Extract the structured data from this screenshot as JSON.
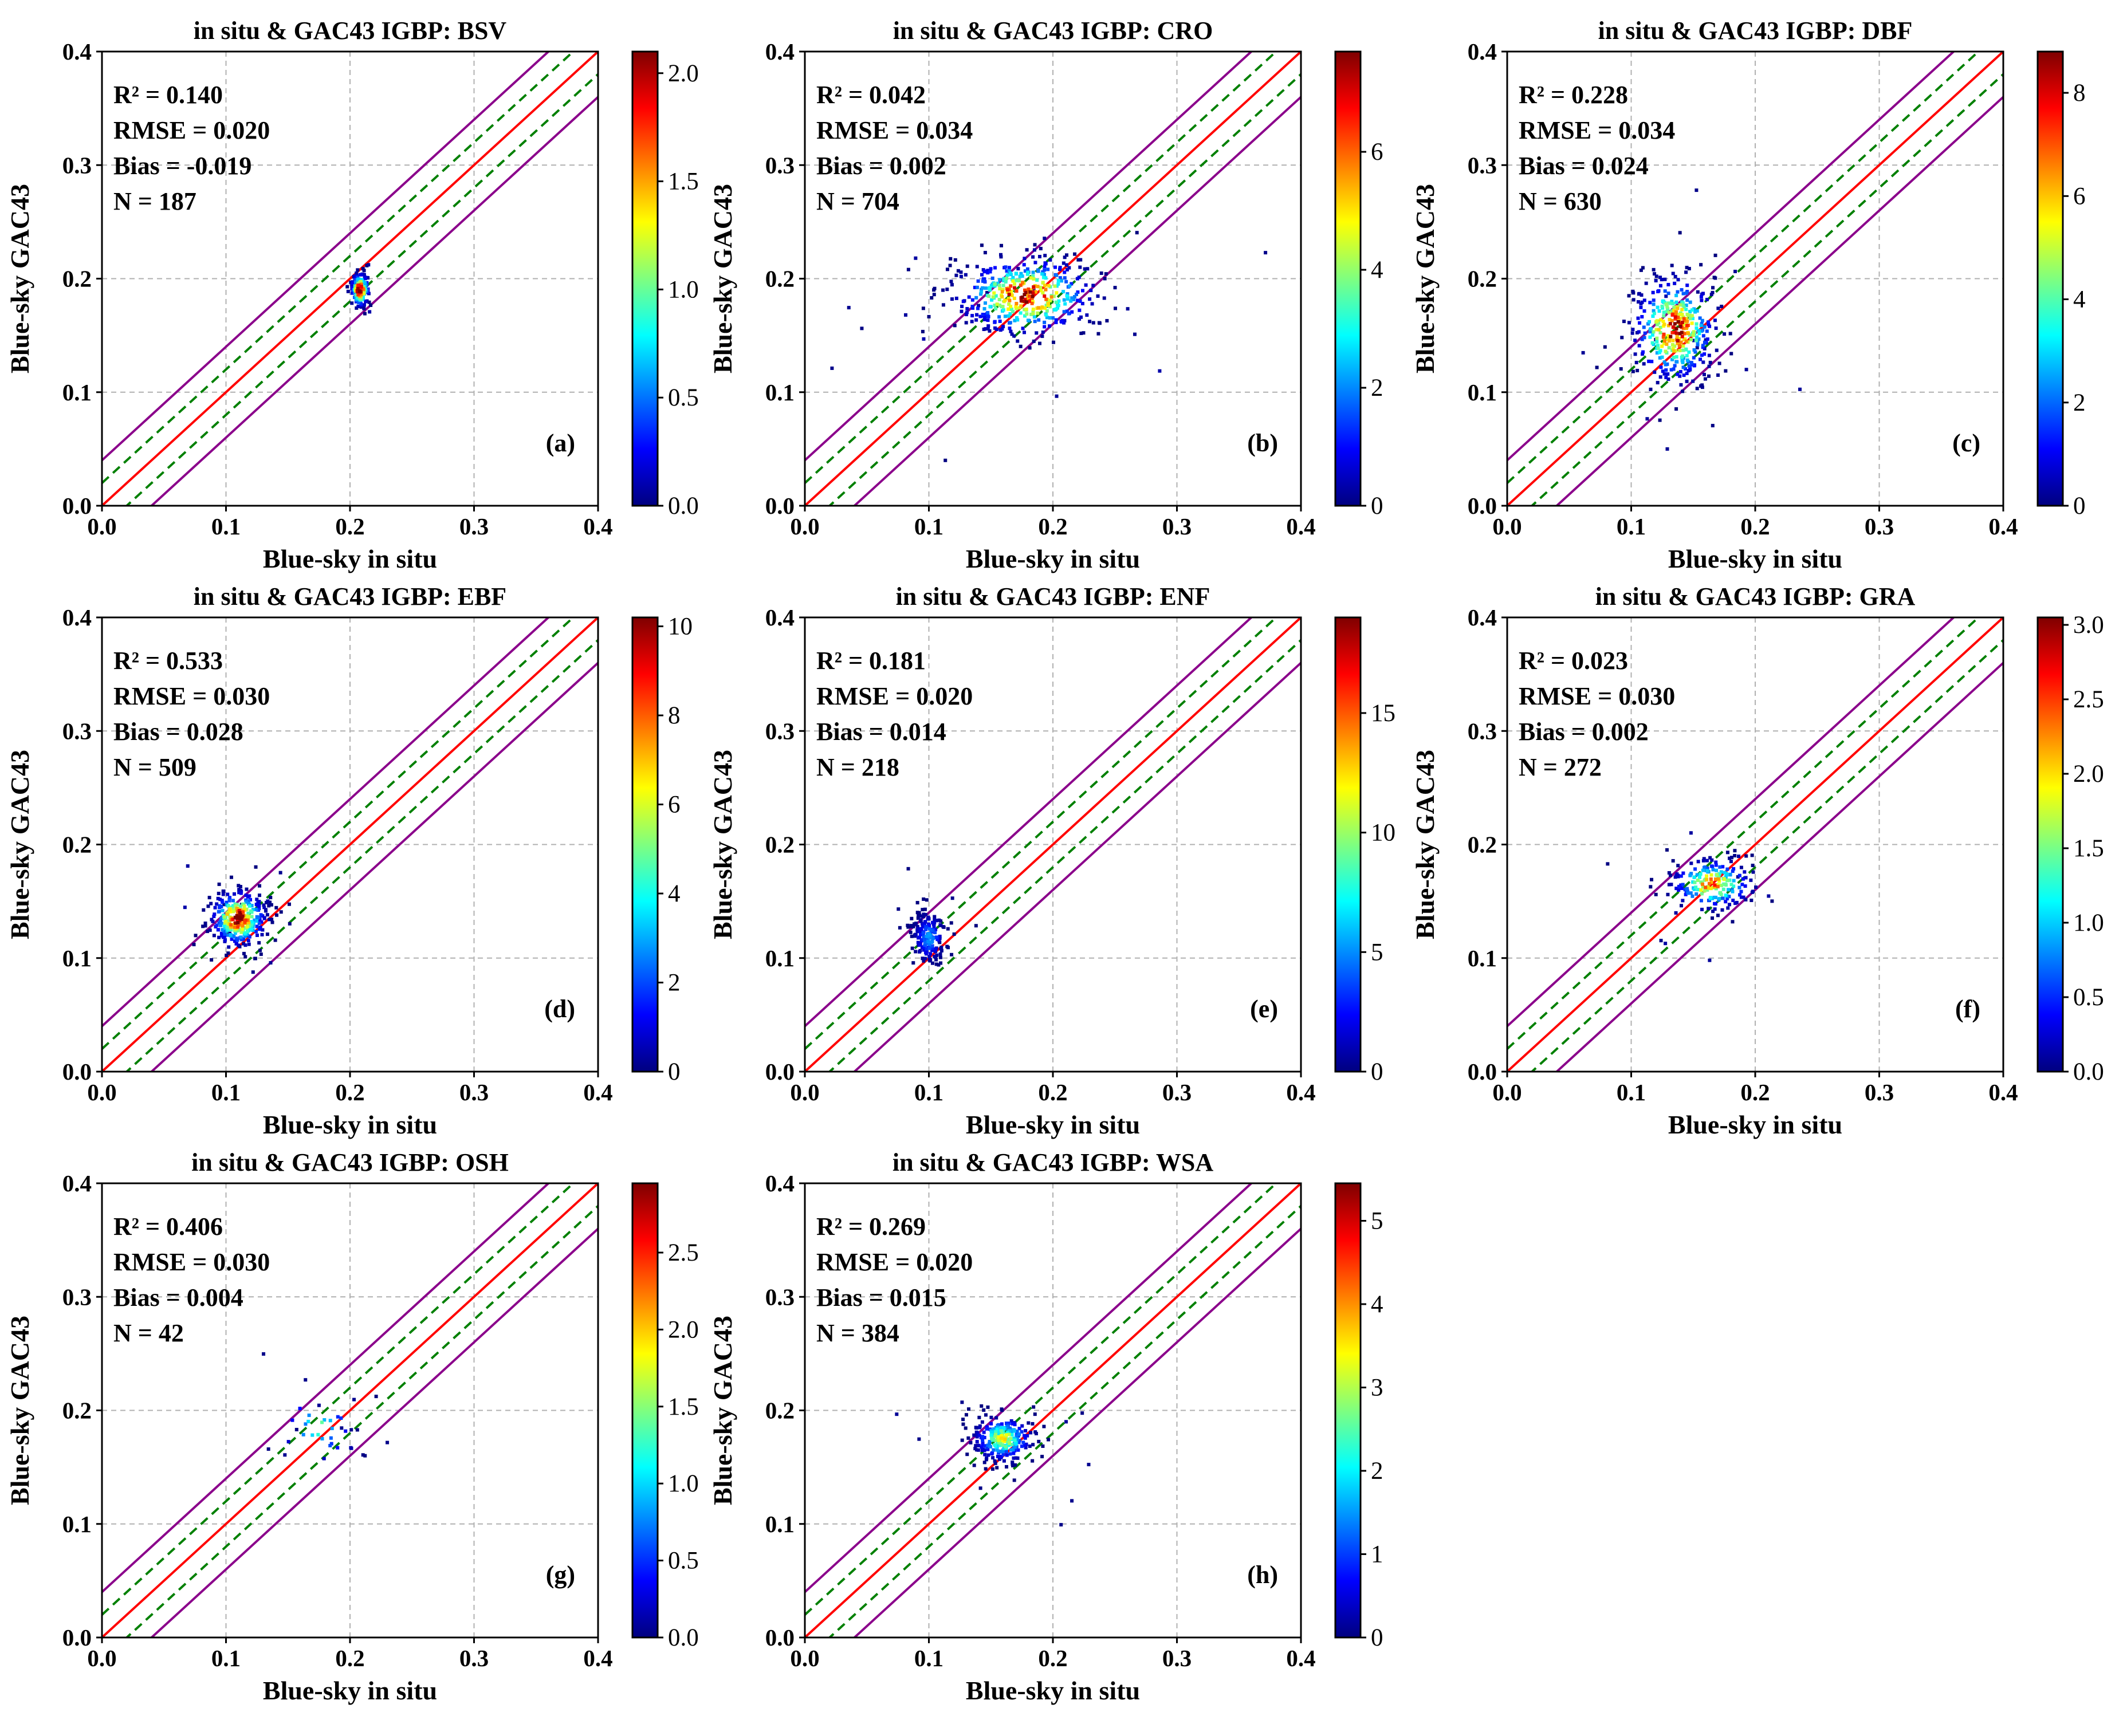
{
  "figure": {
    "colormap": [
      "#00007f",
      "#0000ff",
      "#007fff",
      "#00ffff",
      "#7fff7f",
      "#ffff00",
      "#ff7f00",
      "#ff0000",
      "#7f0000"
    ],
    "line_colors": {
      "identity": "#ff0000",
      "inner_band": "#008000",
      "outer_band": "#8b008b",
      "grid": "#b0b0b0"
    }
  },
  "chart_data": [
    {
      "type": "scatter",
      "panel": "(a)",
      "title": "in situ & GAC43   IGBP: BSV",
      "xlabel": "Blue-sky in situ",
      "ylabel": "Blue-sky GAC43",
      "xlim": [
        0.0,
        0.4
      ],
      "ylim": [
        0.0,
        0.4
      ],
      "xticks": [
        "0.0",
        "0.1",
        "0.2",
        "0.3",
        "0.4"
      ],
      "yticks": [
        "0.0",
        "0.1",
        "0.2",
        "0.3",
        "0.4"
      ],
      "stats": {
        "r2": "R² = 0.140",
        "rmse": "RMSE = 0.020",
        "bias": "Bias = -0.019",
        "n": "N = 187"
      },
      "reference_lines": {
        "identity": 0.0,
        "inner_offset": 0.02,
        "outer_offset": 0.04
      },
      "colorbar": {
        "min": 0.0,
        "max": 2.1,
        "ticks": [
          "0.0",
          "0.5",
          "1.0",
          "1.5",
          "2.0"
        ],
        "tick_values": [
          0.0,
          0.5,
          1.0,
          1.5,
          2.0
        ]
      },
      "cluster": {
        "cx": 0.208,
        "cy": 0.19,
        "sx": 0.004,
        "sy": 0.008,
        "n": 140,
        "outliers": 4,
        "peak": 2.0
      }
    },
    {
      "type": "scatter",
      "panel": "(b)",
      "title": "in situ & GAC43   IGBP: CRO",
      "xlabel": "Blue-sky in situ",
      "ylabel": "Blue-sky GAC43",
      "xlim": [
        0.0,
        0.4
      ],
      "ylim": [
        0.0,
        0.4
      ],
      "xticks": [
        "0.0",
        "0.1",
        "0.2",
        "0.3",
        "0.4"
      ],
      "yticks": [
        "0.0",
        "0.1",
        "0.2",
        "0.3",
        "0.4"
      ],
      "stats": {
        "r2": "R² = 0.042",
        "rmse": "RMSE = 0.034",
        "bias": "Bias = 0.002",
        "n": "N = 704"
      },
      "reference_lines": {
        "identity": 0.0,
        "inner_offset": 0.02,
        "outer_offset": 0.04
      },
      "colorbar": {
        "min": 0.0,
        "max": 7.7,
        "ticks": [
          "0",
          "2",
          "4",
          "6"
        ],
        "tick_values": [
          0,
          2,
          4,
          6
        ]
      },
      "cluster": {
        "cx": 0.178,
        "cy": 0.185,
        "sx": 0.03,
        "sy": 0.018,
        "n": 420,
        "outliers": 30,
        "peak": 7.0
      }
    },
    {
      "type": "scatter",
      "panel": "(c)",
      "title": "in situ & GAC43   IGBP: DBF",
      "xlabel": "Blue-sky in situ",
      "ylabel": "Blue-sky GAC43",
      "xlim": [
        0.0,
        0.4
      ],
      "ylim": [
        0.0,
        0.4
      ],
      "xticks": [
        "0.0",
        "0.1",
        "0.2",
        "0.3",
        "0.4"
      ],
      "yticks": [
        "0.0",
        "0.1",
        "0.2",
        "0.3",
        "0.4"
      ],
      "stats": {
        "r2": "R² = 0.228",
        "rmse": "RMSE = 0.034",
        "bias": "Bias = 0.024",
        "n": "N = 630"
      },
      "reference_lines": {
        "identity": 0.0,
        "inner_offset": 0.02,
        "outer_offset": 0.04
      },
      "colorbar": {
        "min": 0.0,
        "max": 8.8,
        "ticks": [
          "0",
          "2",
          "4",
          "6",
          "8"
        ],
        "tick_values": [
          0,
          2,
          4,
          6,
          8
        ]
      },
      "cluster": {
        "cx": 0.135,
        "cy": 0.155,
        "sx": 0.018,
        "sy": 0.025,
        "n": 380,
        "outliers": 20,
        "peak": 8.0
      }
    },
    {
      "type": "scatter",
      "panel": "(d)",
      "title": "in situ & GAC43   IGBP: EBF",
      "xlabel": "Blue-sky in situ",
      "ylabel": "Blue-sky GAC43",
      "xlim": [
        0.0,
        0.4
      ],
      "ylim": [
        0.0,
        0.4
      ],
      "xticks": [
        "0.0",
        "0.1",
        "0.2",
        "0.3",
        "0.4"
      ],
      "yticks": [
        "0.0",
        "0.1",
        "0.2",
        "0.3",
        "0.4"
      ],
      "stats": {
        "r2": "R² = 0.533",
        "rmse": "RMSE = 0.030",
        "bias": "Bias = 0.028",
        "n": "N = 509"
      },
      "reference_lines": {
        "identity": 0.0,
        "inner_offset": 0.02,
        "outer_offset": 0.04
      },
      "colorbar": {
        "min": 0.0,
        "max": 10.2,
        "ticks": [
          "0",
          "2",
          "4",
          "6",
          "8",
          "10"
        ],
        "tick_values": [
          0,
          2,
          4,
          6,
          8,
          10
        ]
      },
      "cluster": {
        "cx": 0.11,
        "cy": 0.135,
        "sx": 0.012,
        "sy": 0.013,
        "n": 320,
        "outliers": 15,
        "peak": 9.5
      }
    },
    {
      "type": "scatter",
      "panel": "(e)",
      "title": "in situ & GAC43   IGBP: ENF",
      "xlabel": "Blue-sky in situ",
      "ylabel": "Blue-sky GAC43",
      "xlim": [
        0.0,
        0.4
      ],
      "ylim": [
        0.0,
        0.4
      ],
      "xticks": [
        "0.0",
        "0.1",
        "0.2",
        "0.3",
        "0.4"
      ],
      "yticks": [
        "0.0",
        "0.1",
        "0.2",
        "0.3",
        "0.4"
      ],
      "stats": {
        "r2": "R² = 0.181",
        "rmse": "RMSE = 0.020",
        "bias": "Bias = 0.014",
        "n": "N = 218"
      },
      "reference_lines": {
        "identity": 0.0,
        "inner_offset": 0.02,
        "outer_offset": 0.04
      },
      "colorbar": {
        "min": 0.0,
        "max": 19.0,
        "ticks": [
          "0",
          "5",
          "10",
          "15"
        ],
        "tick_values": [
          0,
          5,
          10,
          15
        ]
      },
      "cluster": {
        "cx": 0.1,
        "cy": 0.118,
        "sx": 0.007,
        "sy": 0.012,
        "n": 170,
        "outliers": 10,
        "peak": 5.0
      }
    },
    {
      "type": "scatter",
      "panel": "(f)",
      "title": "in situ & GAC43   IGBP: GRA",
      "xlabel": "Blue-sky in situ",
      "ylabel": "Blue-sky GAC43",
      "xlim": [
        0.0,
        0.4
      ],
      "ylim": [
        0.0,
        0.4
      ],
      "xticks": [
        "0.0",
        "0.1",
        "0.2",
        "0.3",
        "0.4"
      ],
      "yticks": [
        "0.0",
        "0.1",
        "0.2",
        "0.3",
        "0.4"
      ],
      "stats": {
        "r2": "R² = 0.023",
        "rmse": "RMSE = 0.030",
        "bias": "Bias = 0.002",
        "n": "N = 272"
      },
      "reference_lines": {
        "identity": 0.0,
        "inner_offset": 0.02,
        "outer_offset": 0.04
      },
      "colorbar": {
        "min": 0.0,
        "max": 3.05,
        "ticks": [
          "0.0",
          "0.5",
          "1.0",
          "1.5",
          "2.0",
          "2.5",
          "3.0"
        ],
        "tick_values": [
          0.0,
          0.5,
          1.0,
          1.5,
          2.0,
          2.5,
          3.0
        ]
      },
      "cluster": {
        "cx": 0.165,
        "cy": 0.165,
        "sx": 0.018,
        "sy": 0.012,
        "n": 200,
        "outliers": 12,
        "peak": 2.2
      }
    },
    {
      "type": "scatter",
      "panel": "(g)",
      "title": "in situ & GAC43   IGBP: OSH",
      "xlabel": "Blue-sky in situ",
      "ylabel": "Blue-sky GAC43",
      "xlim": [
        0.0,
        0.4
      ],
      "ylim": [
        0.0,
        0.4
      ],
      "xticks": [
        "0.0",
        "0.1",
        "0.2",
        "0.3",
        "0.4"
      ],
      "yticks": [
        "0.0",
        "0.1",
        "0.2",
        "0.3",
        "0.4"
      ],
      "stats": {
        "r2": "R² = 0.406",
        "rmse": "RMSE = 0.030",
        "bias": "Bias = 0.004",
        "n": "N = 42"
      },
      "reference_lines": {
        "identity": 0.0,
        "inner_offset": 0.02,
        "outer_offset": 0.04
      },
      "colorbar": {
        "min": 0.0,
        "max": 2.95,
        "ticks": [
          "0.0",
          "0.5",
          "1.0",
          "1.5",
          "2.0",
          "2.5"
        ],
        "tick_values": [
          0.0,
          0.5,
          1.0,
          1.5,
          2.0,
          2.5
        ]
      },
      "cluster": {
        "cx": 0.175,
        "cy": 0.185,
        "sx": 0.018,
        "sy": 0.02,
        "n": 30,
        "outliers": 8,
        "peak": 1.2
      }
    },
    {
      "type": "scatter",
      "panel": "(h)",
      "title": "in situ & GAC43   IGBP: WSA",
      "xlabel": "Blue-sky in situ",
      "ylabel": "Blue-sky GAC43",
      "xlim": [
        0.0,
        0.4
      ],
      "ylim": [
        0.0,
        0.4
      ],
      "xticks": [
        "0.0",
        "0.1",
        "0.2",
        "0.3",
        "0.4"
      ],
      "yticks": [
        "0.0",
        "0.1",
        "0.2",
        "0.3",
        "0.4"
      ],
      "stats": {
        "r2": "R² = 0.269",
        "rmse": "RMSE = 0.020",
        "bias": "Bias = 0.015",
        "n": "N = 384"
      },
      "reference_lines": {
        "identity": 0.0,
        "inner_offset": 0.02,
        "outer_offset": 0.04
      },
      "colorbar": {
        "min": 0.0,
        "max": 5.45,
        "ticks": [
          "0",
          "1",
          "2",
          "3",
          "4",
          "5"
        ],
        "tick_values": [
          0,
          1,
          2,
          3,
          4,
          5
        ]
      },
      "cluster": {
        "cx": 0.16,
        "cy": 0.175,
        "sx": 0.013,
        "sy": 0.011,
        "n": 260,
        "outliers": 10,
        "peak": 3.0
      }
    }
  ]
}
